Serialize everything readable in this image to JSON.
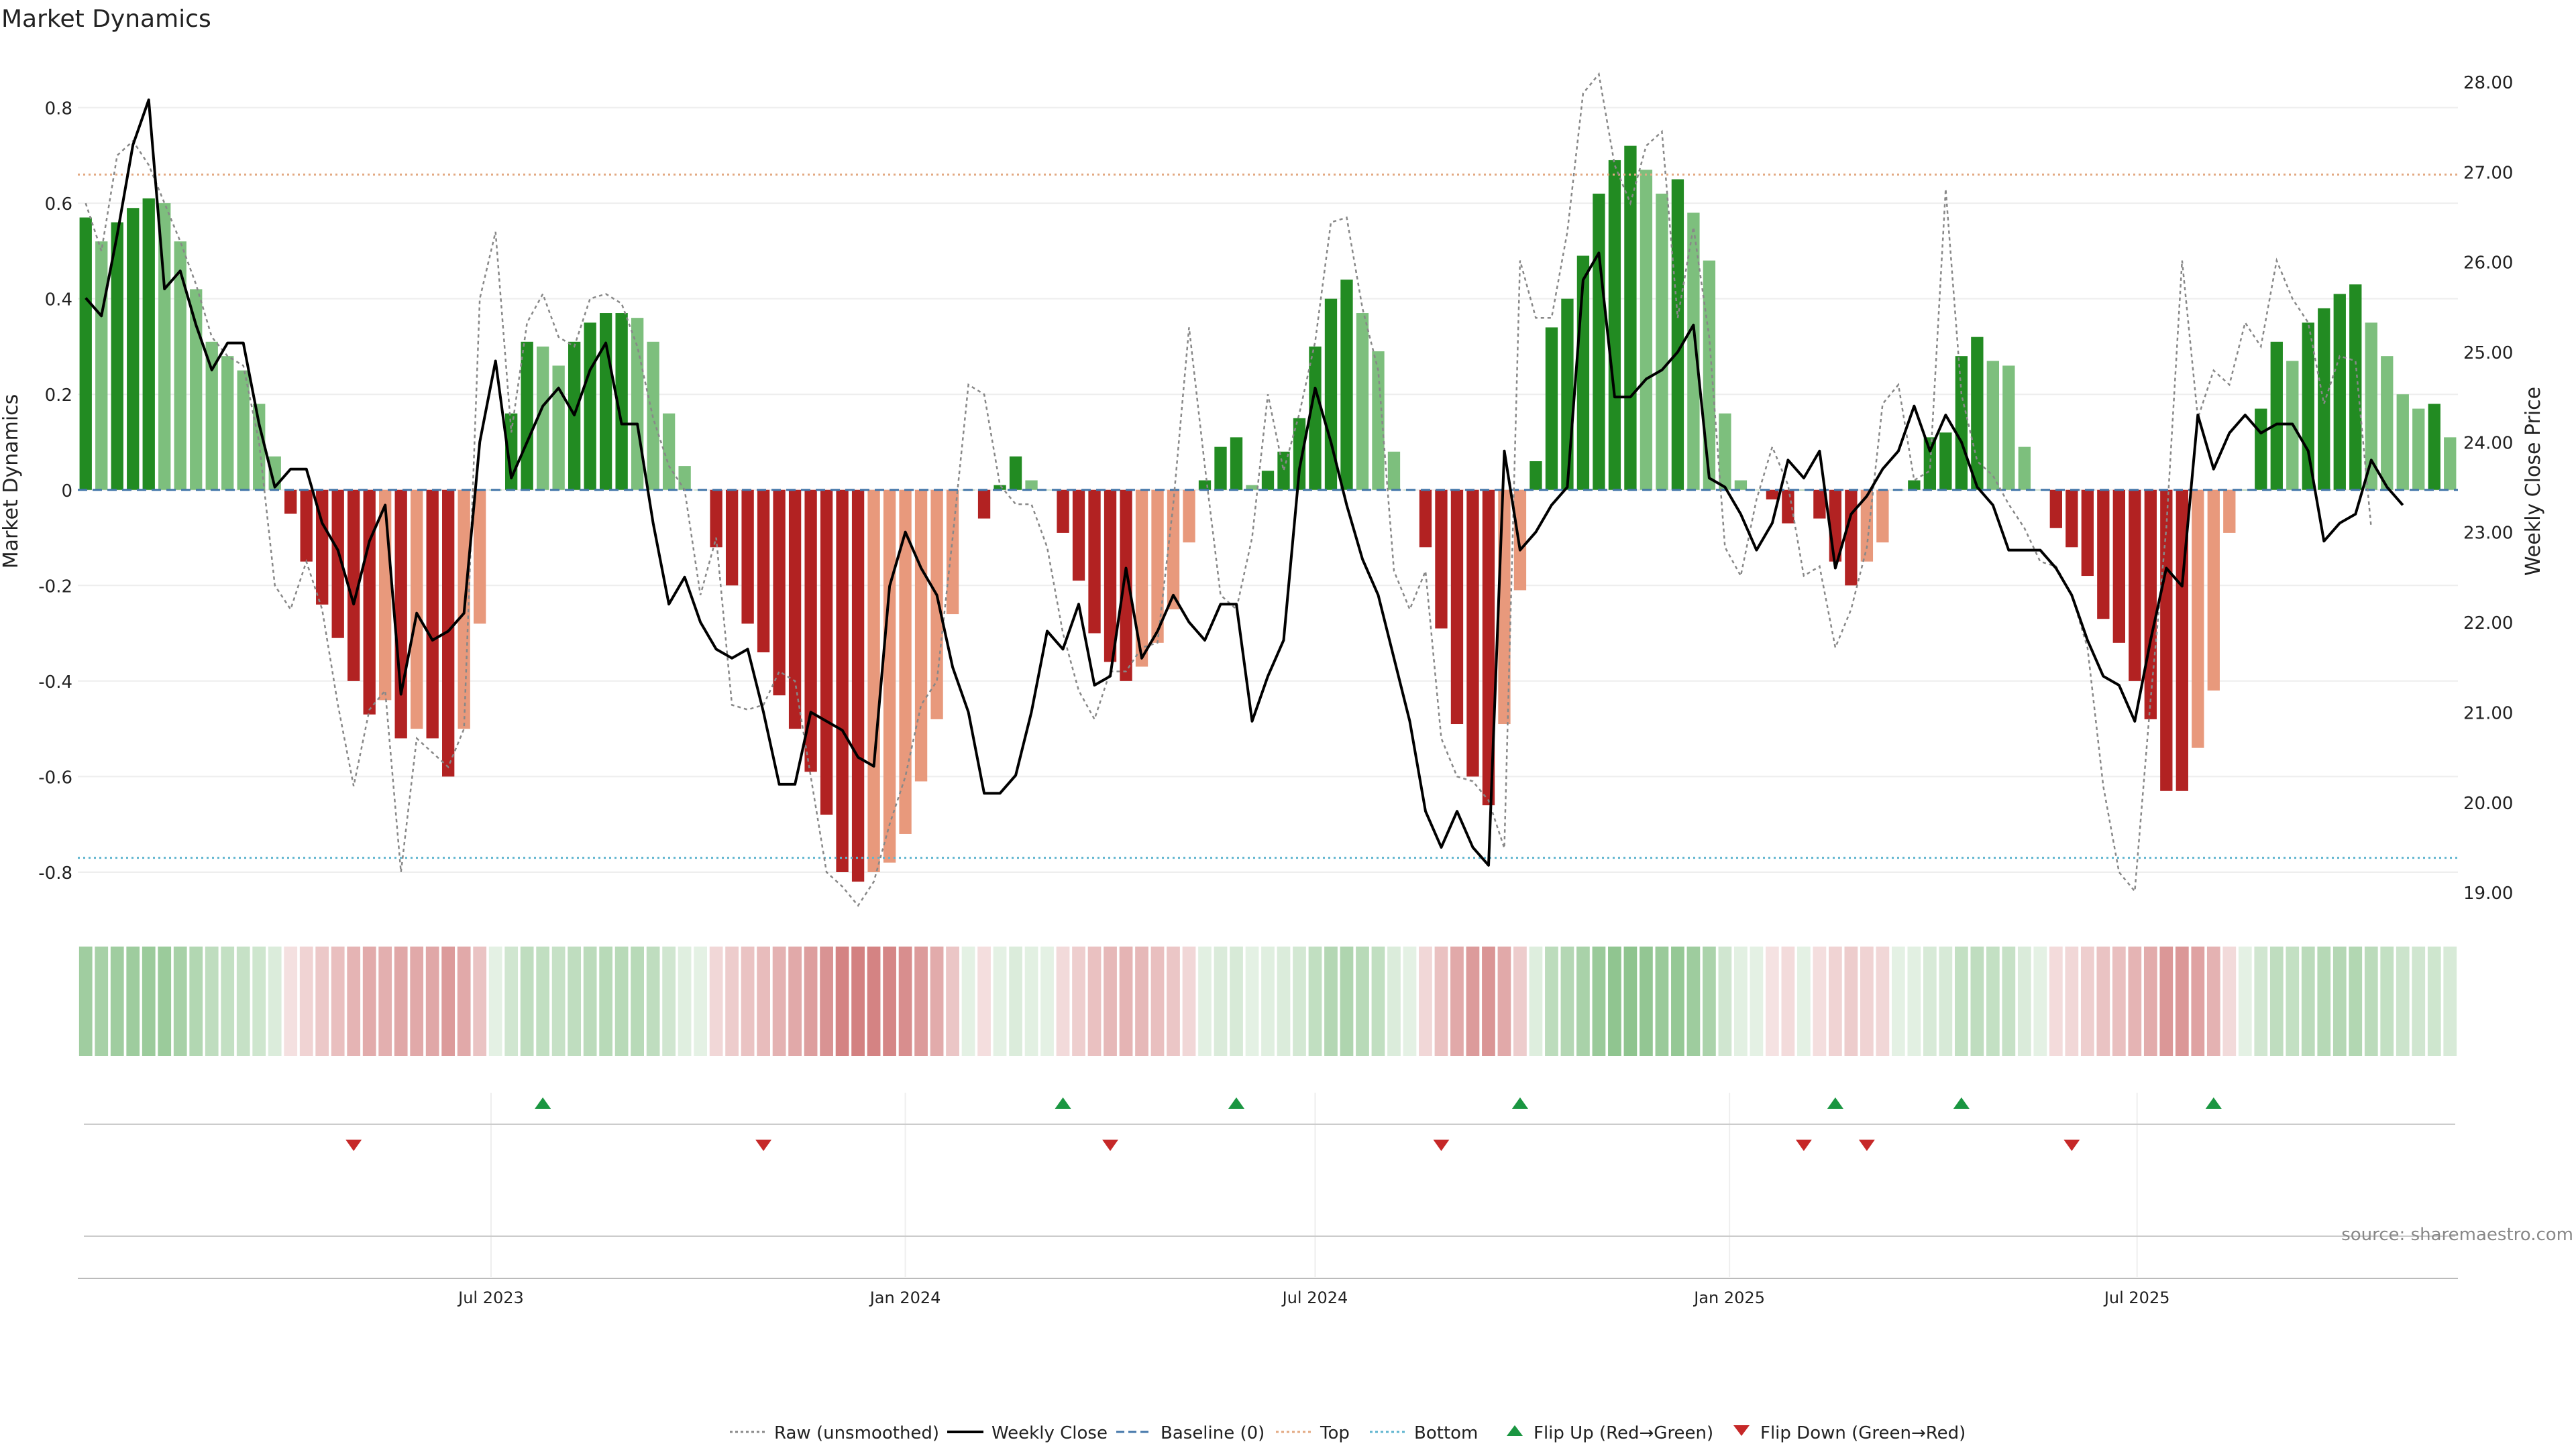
{
  "chart_data": {
    "type": "bar",
    "title": "Market Dynamics",
    "ylabel_left": "Market Dynamics",
    "ylabel_right": "Weekly Close Price",
    "source": "source: sharemaestro.com",
    "x_start": "2023-01-02",
    "x_step_days": 7,
    "ylim_left": [
      -0.88,
      0.92
    ],
    "ylim_right": [
      18.8,
      28.35
    ],
    "left_ticks": [
      "-0.8",
      "-0.6",
      "-0.4",
      "-0.2",
      "0",
      "0.2",
      "0.4",
      "0.6",
      "0.8"
    ],
    "right_ticks": [
      "19.00",
      "20.00",
      "21.00",
      "22.00",
      "23.00",
      "24.00",
      "25.00",
      "26.00",
      "27.00",
      "28.00"
    ],
    "x_ticks": [
      {
        "label": "Jul 2023",
        "date": "2023-07-01"
      },
      {
        "label": "Jan 2024",
        "date": "2024-01-01"
      },
      {
        "label": "Jul 2024",
        "date": "2024-07-01"
      },
      {
        "label": "Jan 2025",
        "date": "2025-01-01"
      },
      {
        "label": "Jul 2025",
        "date": "2025-07-01"
      }
    ],
    "top_level": 0.66,
    "bottom_level": -0.77,
    "baseline": 0,
    "smoothed": [
      0.57,
      0.52,
      0.56,
      0.59,
      0.61,
      0.6,
      0.52,
      0.42,
      0.31,
      0.28,
      0.25,
      0.18,
      0.07,
      -0.05,
      -0.15,
      -0.24,
      -0.31,
      -0.4,
      -0.47,
      -0.44,
      -0.52,
      -0.5,
      -0.52,
      -0.6,
      -0.5,
      -0.28,
      0,
      0.16,
      0.31,
      0.3,
      0.26,
      0.31,
      0.35,
      0.37,
      0.37,
      0.36,
      0.31,
      0.16,
      0.05,
      0,
      -0.12,
      -0.2,
      -0.28,
      -0.34,
      -0.43,
      -0.5,
      -0.59,
      -0.68,
      -0.8,
      -0.82,
      -0.8,
      -0.78,
      -0.72,
      -0.61,
      -0.48,
      -0.26,
      0,
      -0.06,
      0.01,
      0.07,
      0.02,
      0,
      -0.09,
      -0.19,
      -0.3,
      -0.36,
      -0.4,
      -0.37,
      -0.32,
      -0.25,
      -0.11,
      0.02,
      0.09,
      0.11,
      0.01,
      0.04,
      0.08,
      0.15,
      0.3,
      0.4,
      0.44,
      0.37,
      0.29,
      0.08,
      0,
      -0.12,
      -0.29,
      -0.49,
      -0.6,
      -0.66,
      -0.49,
      -0.21,
      0.06,
      0.34,
      0.4,
      0.49,
      0.62,
      0.69,
      0.72,
      0.67,
      0.62,
      0.65,
      0.58,
      0.48,
      0.16,
      0.02,
      0,
      -0.02,
      -0.07,
      0,
      -0.06,
      -0.15,
      -0.2,
      -0.15,
      -0.11,
      0,
      0.02,
      0.11,
      0.12,
      0.28,
      0.32,
      0.27,
      0.26,
      0.09,
      0,
      -0.08,
      -0.12,
      -0.18,
      -0.27,
      -0.32,
      -0.4,
      -0.48,
      -0.63,
      -0.63,
      -0.54,
      -0.42,
      -0.09,
      0,
      0.17,
      0.31,
      0.27,
      0.35,
      0.38,
      0.41,
      0.43,
      0.35,
      0.28,
      0.2,
      0.17,
      0.18,
      0.11
    ],
    "raw": [
      0.6,
      0.5,
      0.7,
      0.73,
      0.68,
      0.6,
      0.52,
      0.43,
      0.32,
      0.28,
      0.26,
      0.1,
      -0.2,
      -0.25,
      -0.15,
      -0.25,
      -0.45,
      -0.62,
      -0.46,
      -0.42,
      -0.8,
      -0.52,
      -0.55,
      -0.58,
      -0.5,
      0.4,
      0.54,
      0.12,
      0.35,
      0.41,
      0.32,
      0.3,
      0.4,
      0.41,
      0.39,
      0.3,
      0.15,
      0.05,
      0,
      -0.22,
      -0.1,
      -0.45,
      -0.46,
      -0.45,
      -0.38,
      -0.4,
      -0.6,
      -0.8,
      -0.83,
      -0.87,
      -0.82,
      -0.7,
      -0.6,
      -0.45,
      -0.4,
      -0.1,
      0.22,
      0.2,
      0.01,
      -0.03,
      -0.03,
      -0.12,
      -0.3,
      -0.42,
      -0.48,
      -0.38,
      -0.38,
      -0.33,
      -0.32,
      -0.03,
      0.34,
      0.05,
      -0.22,
      -0.25,
      -0.1,
      0.2,
      0.04,
      0.16,
      0.31,
      0.56,
      0.57,
      0.38,
      0.25,
      -0.17,
      -0.25,
      -0.17,
      -0.52,
      -0.6,
      -0.61,
      -0.65,
      -0.75,
      0.48,
      0.36,
      0.36,
      0.54,
      0.83,
      0.87,
      0.68,
      0.6,
      0.72,
      0.75,
      0.36,
      0.55,
      0.32,
      -0.12,
      -0.18,
      -0.02,
      0.09,
      0.01,
      -0.18,
      -0.16,
      -0.33,
      -0.25,
      -0.12,
      0.18,
      0.22,
      0.02,
      0.04,
      0.63,
      0.2,
      0.06,
      0.03,
      -0.03,
      -0.08,
      -0.15,
      -0.16,
      -0.22,
      -0.33,
      -0.62,
      -0.8,
      -0.84,
      -0.44,
      -0.08,
      0.48,
      0.15,
      0.25,
      0.22,
      0.35,
      0.3,
      0.48,
      0.4,
      0.35,
      0.18,
      0.28,
      0.27,
      -0.08
    ],
    "close": [
      25.6,
      25.4,
      26.3,
      27.3,
      27.8,
      25.7,
      25.9,
      25.3,
      24.8,
      25.1,
      25.1,
      24.2,
      23.5,
      23.7,
      23.7,
      23.1,
      22.8,
      22.2,
      22.9,
      23.3,
      21.2,
      22.1,
      21.8,
      21.9,
      22.1,
      24.0,
      24.9,
      23.6,
      24.0,
      24.4,
      24.6,
      24.3,
      24.8,
      25.1,
      24.2,
      24.2,
      23.1,
      22.2,
      22.5,
      22.0,
      21.7,
      21.6,
      21.7,
      21.0,
      20.2,
      20.2,
      21.0,
      20.9,
      20.8,
      20.5,
      20.4,
      22.4,
      23.0,
      22.6,
      22.3,
      21.5,
      21.0,
      20.1,
      20.1,
      20.3,
      21.0,
      21.9,
      21.7,
      22.2,
      21.3,
      21.4,
      22.6,
      21.6,
      21.9,
      22.3,
      22.0,
      21.8,
      22.2,
      22.2,
      20.9,
      21.4,
      21.8,
      23.7,
      24.6,
      24.0,
      23.3,
      22.7,
      22.3,
      21.6,
      20.9,
      19.9,
      19.5,
      19.9,
      19.5,
      19.3,
      23.9,
      22.8,
      23.0,
      23.3,
      23.5,
      25.8,
      26.1,
      24.5,
      24.5,
      24.7,
      24.8,
      25.0,
      25.3,
      23.6,
      23.5,
      23.2,
      22.8,
      23.1,
      23.8,
      23.6,
      23.9,
      22.6,
      23.2,
      23.4,
      23.7,
      23.9,
      24.4,
      23.9,
      24.3,
      24.0,
      23.5,
      23.3,
      22.8,
      22.8,
      22.8,
      22.6,
      22.3,
      21.8,
      21.4,
      21.3,
      20.9,
      21.8,
      22.6,
      22.4,
      24.3,
      23.7,
      24.1,
      24.3,
      24.1,
      24.2,
      24.2,
      23.9,
      22.9,
      23.1,
      23.2,
      23.8,
      23.5,
      23.3
    ]
  },
  "flips": {
    "up": [
      "2023-07-24",
      "2024-03-11",
      "2024-05-27",
      "2024-09-30",
      "2025-02-17",
      "2025-04-14",
      "2025-08-04"
    ],
    "down": [
      "2023-05-01",
      "2023-10-30",
      "2024-04-01",
      "2024-08-26",
      "2025-02-03",
      "2025-03-03",
      "2025-06-02"
    ]
  },
  "colors": {
    "strong_green": "#228b22",
    "light_green": "#7dbf7d",
    "strong_red": "#b22222",
    "light_red": "#e8997c",
    "close_line": "#000000",
    "raw_line": "#888888",
    "baseline": "#4477aa",
    "top": "#e3a982",
    "bottom": "#5fb5cf",
    "flip_up": "#1a9641",
    "flip_down": "#c62828"
  },
  "legend": [
    {
      "key": "raw",
      "label": "Raw (unsmoothed)",
      "icon": "dotted-line-icon"
    },
    {
      "key": "close",
      "label": "Weekly Close",
      "icon": "solid-line-icon"
    },
    {
      "key": "baseline",
      "label": "Baseline (0)",
      "icon": "dashed-line-icon"
    },
    {
      "key": "top",
      "label": "Top",
      "icon": "dotted-line-icon"
    },
    {
      "key": "bottom",
      "label": "Bottom",
      "icon": "dotted-line-icon"
    },
    {
      "key": "flip_up",
      "label": "Flip Up (Red→Green)",
      "icon": "triangle-up-icon"
    },
    {
      "key": "flip_down",
      "label": "Flip Down (Green→Red)",
      "icon": "triangle-down-icon"
    }
  ]
}
